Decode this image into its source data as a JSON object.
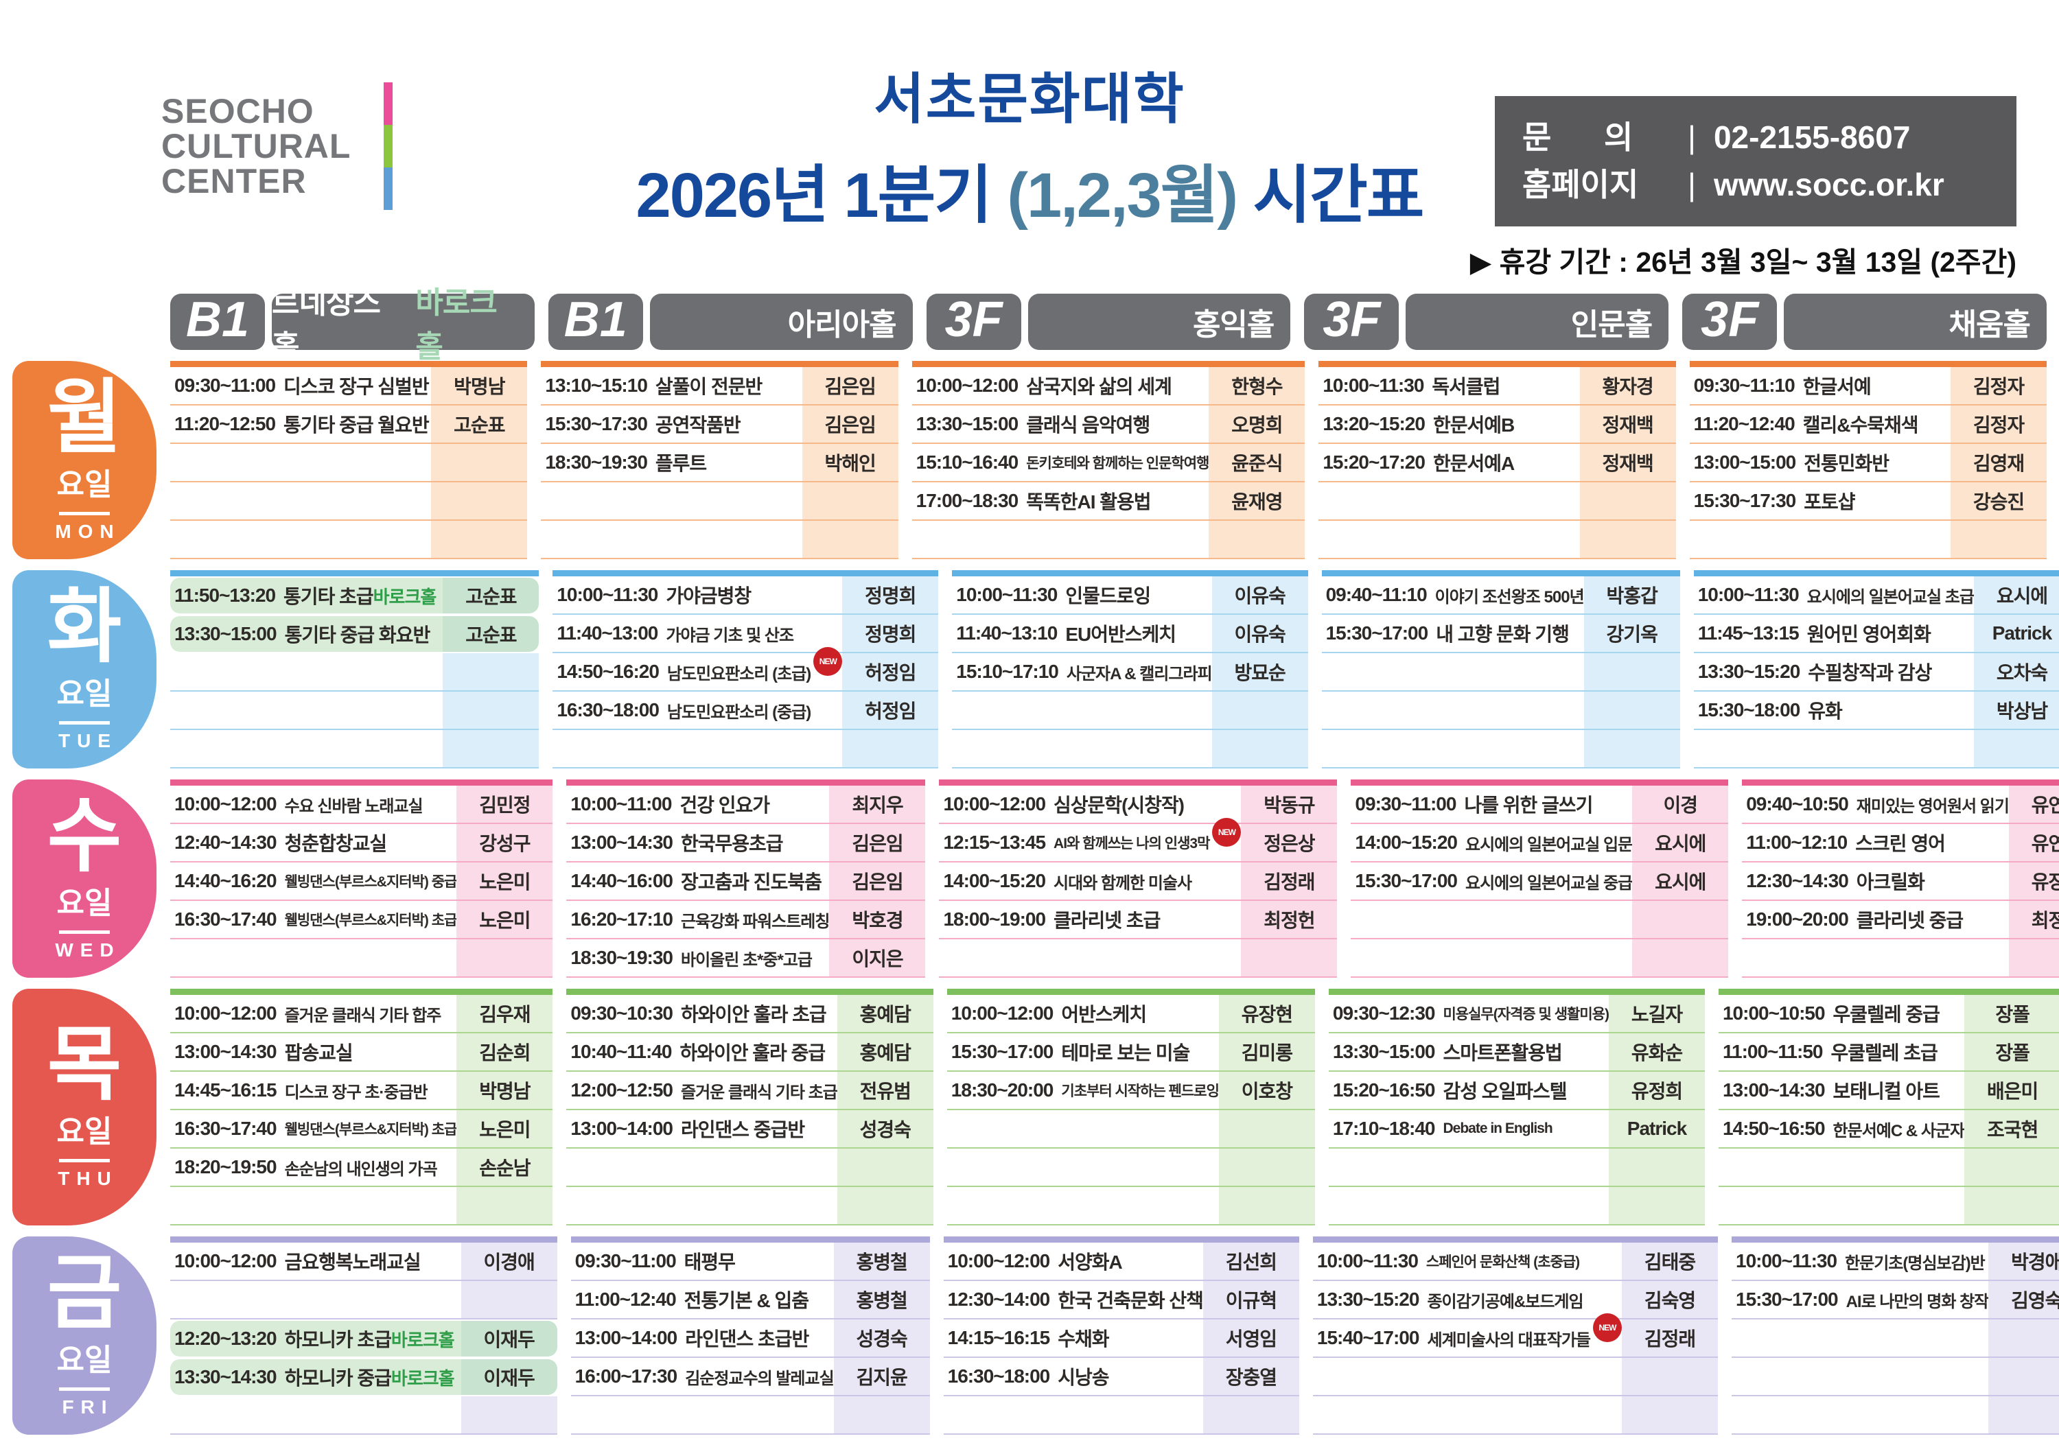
{
  "header": {
    "logo_lines": [
      "SEOCHO",
      "CULTURAL",
      "CENTER"
    ],
    "logo_bar_colors": [
      "#ec4d9a",
      "#8cc63f",
      "#5d9ed7"
    ],
    "title_line1": "서초문화대학",
    "title_line2_main1": "2026년 1분기",
    "title_line2_paren": "(1,2,3월)",
    "title_line2_main2": "시간표",
    "title_color": "#15499c",
    "title_paren_color": "#4b7f9d",
    "contact": {
      "label1": "문      의",
      "value1": "02-2155-8607",
      "label2": "홈페이지",
      "value2": "www.socc.or.kr",
      "box_color": "#59595c"
    },
    "notice": "▶ 휴강 기간 : 26년 3월 3일~ 3월 13일 (2주간)"
  },
  "columns": [
    {
      "floor": "B1",
      "hall": "르네상스홀, ",
      "hall_highlight": "바로크홀",
      "highlight_color": "#a7d8b6"
    },
    {
      "floor": "B1",
      "hall": "아리아홀",
      "hall_highlight": "",
      "highlight_color": ""
    },
    {
      "floor": "3F",
      "hall": "홍익홀",
      "hall_highlight": "",
      "highlight_color": ""
    },
    {
      "floor": "3F",
      "hall": "인문홀",
      "hall_highlight": "",
      "highlight_color": ""
    },
    {
      "floor": "3F",
      "hall": "채움홀",
      "hall_highlight": "",
      "highlight_color": ""
    }
  ],
  "badge_labels": {
    "new": "NEW",
    "venue_green": "바로크홀"
  },
  "days": [
    {
      "label_kr": "월",
      "label_suffix": "요일",
      "label_en": "MON",
      "slots": 5,
      "colors": {
        "badge": "#ee7f3b",
        "bar": "#ee7f3b",
        "light": "#fce4cf",
        "line": "#f5b98c"
      },
      "cells": [
        [
          {
            "time": "09:30~11:00",
            "name": "디스코 장구 심벌반",
            "teacher": "박명남"
          },
          {
            "time": "11:20~12:50",
            "name": "통기타 중급 월요반",
            "teacher": "고순표"
          },
          null,
          null,
          null
        ],
        [
          {
            "time": "13:10~15:10",
            "name": "살풀이 전문반",
            "teacher": "김은임"
          },
          {
            "time": "15:30~17:30",
            "name": "공연작품반",
            "teacher": "김은임"
          },
          {
            "time": "18:30~19:30",
            "name": "플루트",
            "teacher": "박해인"
          },
          null,
          null
        ],
        [
          {
            "time": "10:00~12:00",
            "name": "삼국지와 삶의 세계",
            "teacher": "한형수"
          },
          {
            "time": "13:30~15:00",
            "name": "클래식 음악여행",
            "teacher": "오명희"
          },
          {
            "time": "15:10~16:40",
            "name": "돈키호테와 함께하는 인문학여행",
            "teacher": "윤준식"
          },
          {
            "time": "17:00~18:30",
            "name": "똑똑한AI 활용법",
            "teacher": "윤재영"
          },
          null
        ],
        [
          {
            "time": "10:00~11:30",
            "name": "독서클럽",
            "teacher": "황자경"
          },
          {
            "time": "13:20~15:20",
            "name": "한문서예B",
            "teacher": "정재백"
          },
          {
            "time": "15:20~17:20",
            "name": "한문서예A",
            "teacher": "정재백"
          },
          null,
          null
        ],
        [
          {
            "time": "09:30~11:10",
            "name": "한글서예",
            "teacher": "김정자"
          },
          {
            "time": "11:20~12:40",
            "name": "캘리&수묵채색",
            "teacher": "김정자"
          },
          {
            "time": "13:00~15:00",
            "name": "전통민화반",
            "teacher": "김영재"
          },
          {
            "time": "15:30~17:30",
            "name": "포토샵",
            "teacher": "강승진"
          },
          null
        ]
      ]
    },
    {
      "label_kr": "화",
      "label_suffix": "요일",
      "label_en": "TUE",
      "slots": 5,
      "colors": {
        "badge": "#73b8e5",
        "bar": "#5eb3e4",
        "light": "#dceef9",
        "line": "#a6d5f0"
      },
      "cells": [
        [
          {
            "time": "11:50~13:20",
            "name": "통기타 초급",
            "venue": "바로크홀",
            "teacher": "고순표",
            "highlight": true
          },
          {
            "time": "13:30~15:00",
            "name": "통기타 중급 화요반",
            "teacher": "고순표",
            "highlight": true
          },
          null,
          null,
          null
        ],
        [
          {
            "time": "10:00~11:30",
            "name": "가야금병창",
            "teacher": "정명희"
          },
          {
            "time": "11:40~13:00",
            "name": "가야금 기초 및 산조",
            "teacher": "정명희"
          },
          {
            "time": "14:50~16:20",
            "name": "남도민요판소리 (초급)",
            "teacher": "허정임",
            "is_new": true
          },
          {
            "time": "16:30~18:00",
            "name": "남도민요판소리 (중급)",
            "teacher": "허정임"
          },
          null
        ],
        [
          {
            "time": "10:00~11:30",
            "name": "인물드로잉",
            "teacher": "이유숙"
          },
          {
            "time": "11:40~13:10",
            "name": "EU어반스케치",
            "teacher": "이유숙"
          },
          {
            "time": "15:10~17:10",
            "name": "사군자A & 캘리그라피",
            "teacher": "방묘순"
          },
          null,
          null
        ],
        [
          {
            "time": "09:40~11:10",
            "name": "이야기 조선왕조 500년",
            "teacher": "박홍갑"
          },
          {
            "time": "15:30~17:00",
            "name": "내 고향 문화 기행",
            "teacher": "강기옥"
          },
          null,
          null,
          null
        ],
        [
          {
            "time": "10:00~11:30",
            "name": "요시에의 일본어교실 초급",
            "teacher": "요시에"
          },
          {
            "time": "11:45~13:15",
            "name": "원어민 영어회화",
            "teacher": "Patrick"
          },
          {
            "time": "13:30~15:20",
            "name": "수필창작과 감상",
            "teacher": "오차숙"
          },
          {
            "time": "15:30~18:00",
            "name": "유화",
            "teacher": "박상남"
          },
          null
        ]
      ]
    },
    {
      "label_kr": "수",
      "label_suffix": "요일",
      "label_en": "WED",
      "slots": 5,
      "colors": {
        "badge": "#e95d8e",
        "bar": "#e95d8e",
        "light": "#fadbe7",
        "line": "#f5abc6"
      },
      "cells": [
        [
          {
            "time": "10:00~12:00",
            "name": "수요 신바람 노래교실",
            "teacher": "김민정"
          },
          {
            "time": "12:40~14:30",
            "name": "청춘합창교실",
            "teacher": "강성구"
          },
          {
            "time": "14:40~16:20",
            "name": "웰빙댄스(부르스&지터박) 중급",
            "teacher": "노은미"
          },
          {
            "time": "16:30~17:40",
            "name": "웰빙댄스(부르스&지터박) 초급",
            "teacher": "노은미"
          },
          null
        ],
        [
          {
            "time": "10:00~11:00",
            "name": "건강 인요가",
            "teacher": "최지우"
          },
          {
            "time": "13:00~14:30",
            "name": "한국무용초급",
            "teacher": "김은임"
          },
          {
            "time": "14:40~16:00",
            "name": "장고춤과 진도북춤",
            "teacher": "김은임"
          },
          {
            "time": "16:20~17:10",
            "name": "근육강화 파워스트레칭",
            "teacher": "박호경"
          },
          {
            "time": "18:30~19:30",
            "name": "바이올린 초*중*고급",
            "teacher": "이지은"
          }
        ],
        [
          {
            "time": "10:00~12:00",
            "name": "심상문학(시창작)",
            "teacher": "박동규"
          },
          {
            "time": "12:15~13:45",
            "name": "AI와 함께쓰는 나의 인생3막",
            "teacher": "정은상",
            "is_new": true
          },
          {
            "time": "14:00~15:20",
            "name": "시대와 함께한 미술사",
            "teacher": "김정래"
          },
          {
            "time": "18:00~19:00",
            "name": "클라리넷 초급",
            "teacher": "최정헌"
          },
          null
        ],
        [
          {
            "time": "09:30~11:00",
            "name": "나를 위한 글쓰기",
            "teacher": "이경"
          },
          {
            "time": "14:00~15:20",
            "name": "요시에의 일본어교실 입문",
            "teacher": "요시에"
          },
          {
            "time": "15:30~17:00",
            "name": "요시에의 일본어교실 중급",
            "teacher": "요시에"
          },
          null,
          null
        ],
        [
          {
            "time": "09:40~10:50",
            "name": "재미있는 영어원서 읽기",
            "teacher": "유연주"
          },
          {
            "time": "11:00~12:10",
            "name": "스크린 영어",
            "teacher": "유연주"
          },
          {
            "time": "12:30~14:30",
            "name": "아크릴화",
            "teacher": "유장현"
          },
          {
            "time": "19:00~20:00",
            "name": "클라리넷 중급",
            "teacher": "최정헌"
          },
          null
        ]
      ]
    },
    {
      "label_kr": "목",
      "label_suffix": "요일",
      "label_en": "THU",
      "slots": 6,
      "colors": {
        "badge": "#e4584f",
        "bar": "#7cbf5c",
        "light": "#e3f1da",
        "line": "#abd690"
      },
      "cells": [
        [
          {
            "time": "10:00~12:00",
            "name": "즐거운 클래식 기타 합주",
            "teacher": "김우재"
          },
          {
            "time": "13:00~14:30",
            "name": "팝송교실",
            "teacher": "김순희"
          },
          {
            "time": "14:45~16:15",
            "name": "디스코 장구 초·중급반",
            "teacher": "박명남"
          },
          {
            "time": "16:30~17:40",
            "name": "웰빙댄스(부르스&지터박) 초급",
            "teacher": "노은미"
          },
          {
            "time": "18:20~19:50",
            "name": "손순남의 내인생의 가곡",
            "teacher": "손순남"
          },
          null
        ],
        [
          {
            "time": "09:30~10:30",
            "name": "하와이안 훌라 초급",
            "teacher": "홍예담"
          },
          {
            "time": "10:40~11:40",
            "name": "하와이안 훌라 중급",
            "teacher": "홍예담"
          },
          {
            "time": "12:00~12:50",
            "name": "즐거운 클래식 기타 초급",
            "teacher": "전유범"
          },
          {
            "time": "13:00~14:00",
            "name": "라인댄스 중급반",
            "teacher": "성경숙"
          },
          null,
          null
        ],
        [
          {
            "time": "10:00~12:00",
            "name": "어반스케치",
            "teacher": "유장현"
          },
          {
            "time": "15:30~17:00",
            "name": "테마로 보는 미술",
            "teacher": "김미롱"
          },
          {
            "time": "18:30~20:00",
            "name": "기초부터 시작하는 펜드로잉",
            "teacher": "이호창"
          },
          null,
          null,
          null
        ],
        [
          {
            "time": "09:30~12:30",
            "name": "미용실무(자격증 및 생활미용)",
            "teacher": "노길자"
          },
          {
            "time": "13:30~15:00",
            "name": "스마트폰활용법",
            "teacher": "유화순"
          },
          {
            "time": "15:20~16:50",
            "name": "감성 오일파스텔",
            "teacher": "유정희"
          },
          {
            "time": "17:10~18:40",
            "name": "Debate in English",
            "teacher": "Patrick"
          },
          null,
          null
        ],
        [
          {
            "time": "10:00~10:50",
            "name": "우쿨렐레 중급",
            "teacher": "장폴"
          },
          {
            "time": "11:00~11:50",
            "name": "우쿨렐레 초급",
            "teacher": "장폴"
          },
          {
            "time": "13:00~14:30",
            "name": "보태니컬 아트",
            "teacher": "배은미"
          },
          {
            "time": "14:50~16:50",
            "name": "한문서예C & 사군자",
            "teacher": "조국현"
          },
          null,
          null
        ]
      ]
    },
    {
      "label_kr": "금",
      "label_suffix": "요일",
      "label_en": "FRI",
      "slots": 5,
      "colors": {
        "badge": "#a8a3d7",
        "bar": "#ada8da",
        "light": "#e9e7f5",
        "line": "#cac6e7"
      },
      "cells": [
        [
          {
            "time": "10:00~12:00",
            "name": "금요행복노래교실",
            "teacher": "이경애"
          },
          null,
          {
            "time": "12:20~13:20",
            "name": "하모니카 초급",
            "venue": "바로크홀",
            "teacher": "이재두",
            "highlight": true
          },
          {
            "time": "13:30~14:30",
            "name": "하모니카 중급",
            "venue": "바로크홀",
            "teacher": "이재두",
            "highlight": true
          },
          null
        ],
        [
          {
            "time": "09:30~11:00",
            "name": "태평무",
            "teacher": "홍병철"
          },
          {
            "time": "11:00~12:40",
            "name": "전통기본 & 입춤",
            "teacher": "홍병철"
          },
          {
            "time": "13:00~14:00",
            "name": "라인댄스 초급반",
            "teacher": "성경숙"
          },
          {
            "time": "16:00~17:30",
            "name": "김순정교수의 발레교실",
            "teacher": "김지윤"
          },
          null
        ],
        [
          {
            "time": "10:00~12:00",
            "name": "서양화A",
            "teacher": "김선희"
          },
          {
            "time": "12:30~14:00",
            "name": "한국 건축문화 산책",
            "teacher": "이규혁"
          },
          {
            "time": "14:15~16:15",
            "name": "수채화",
            "teacher": "서영임"
          },
          {
            "time": "16:30~18:00",
            "name": "시낭송",
            "teacher": "장충열"
          },
          null
        ],
        [
          {
            "time": "10:00~11:30",
            "name": "스페인어 문화산책 (초중급)",
            "teacher": "김태중"
          },
          {
            "time": "13:30~15:20",
            "name": "종이감기공예&보드게임",
            "teacher": "김숙영"
          },
          {
            "time": "15:40~17:00",
            "name": "세계미술사의 대표작가들",
            "teacher": "김정래",
            "is_new": true
          },
          null,
          null
        ],
        [
          {
            "time": "10:00~11:30",
            "name": "한문기초(명심보감)반",
            "teacher": "박경애"
          },
          {
            "time": "15:30~17:00",
            "name": "AI로 나만의 명화 창작",
            "teacher": "김영숙"
          },
          null,
          null,
          null
        ]
      ]
    }
  ]
}
